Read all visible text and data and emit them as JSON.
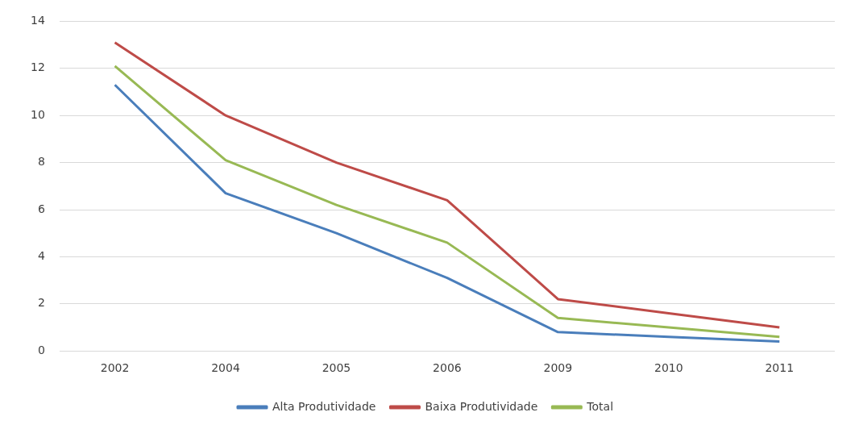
{
  "chart_data": {
    "type": "line",
    "categories": [
      "2002",
      "2004",
      "2005",
      "2006",
      "2009",
      "2010",
      "2011"
    ],
    "series": [
      {
        "name": "Alta Produtividade",
        "color": "#4a7ebb",
        "values": [
          11.3,
          6.7,
          5.0,
          3.1,
          0.8,
          0.6,
          0.4
        ]
      },
      {
        "name": "Baixa Produtividade",
        "color": "#be4b48",
        "values": [
          13.1,
          10.0,
          8.0,
          6.4,
          2.2,
          1.6,
          1.0
        ]
      },
      {
        "name": "Total",
        "color": "#98b954",
        "values": [
          12.1,
          8.1,
          6.2,
          4.6,
          1.4,
          1.0,
          0.6
        ]
      }
    ],
    "ylim": [
      0,
      14
    ],
    "yticks": [
      0,
      2,
      4,
      6,
      8,
      10,
      12,
      14
    ],
    "grid": "y",
    "legend": "bottom",
    "marker": "none",
    "line_style": "solid"
  }
}
